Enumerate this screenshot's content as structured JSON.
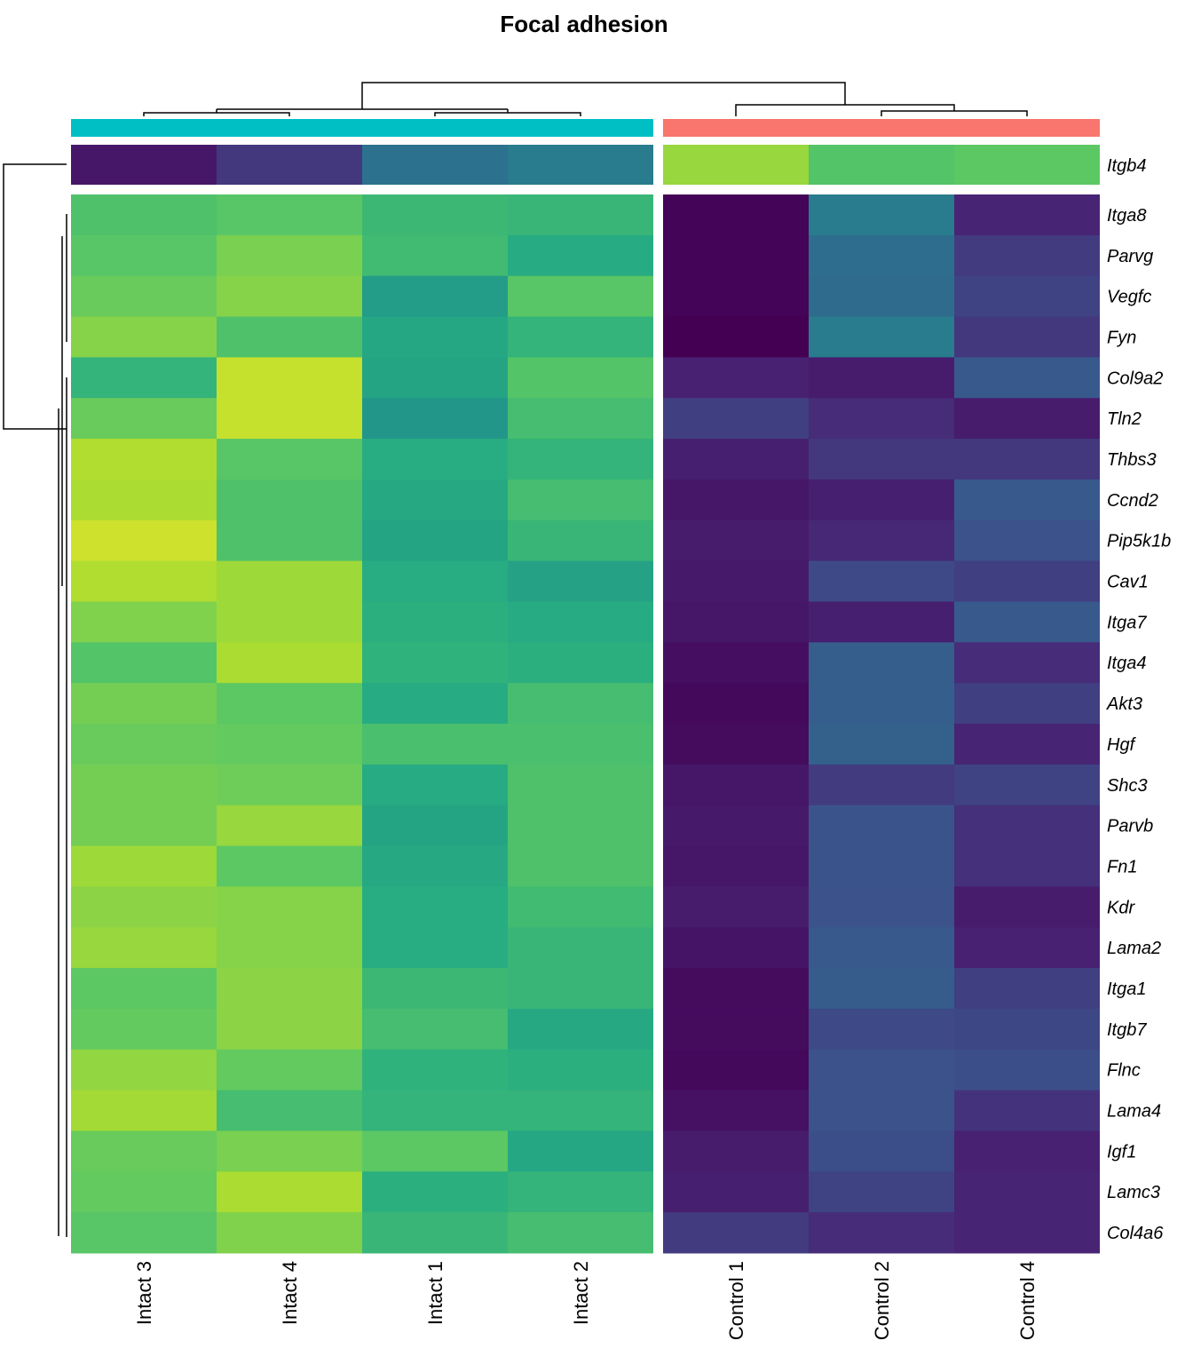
{
  "chart_data": {
    "type": "heatmap",
    "title": "Focal adhesion",
    "columns": [
      "Intact 3",
      "Intact 4",
      "Intact 1",
      "Intact 2",
      "Control 1",
      "Control 2",
      "Control 4"
    ],
    "column_groups": [
      {
        "columns": [
          "Intact 3",
          "Intact 4",
          "Intact 1",
          "Intact 2"
        ],
        "color": "#00BFC4"
      },
      {
        "columns": [
          "Control 1",
          "Control 2",
          "Control 4"
        ],
        "color": "#F8766D"
      }
    ],
    "top_row": {
      "name": "Itgb4",
      "values": [
        0.08,
        0.18,
        0.38,
        0.42,
        0.85,
        0.73,
        0.75
      ]
    },
    "rows": [
      "Itga8",
      "Parvg",
      "Vegfc",
      "Fyn",
      "Col9a2",
      "Tln2",
      "Thbs3",
      "Ccnd2",
      "Pip5k1b",
      "Cav1",
      "Itga7",
      "Itga4",
      "Akt3",
      "Hgf",
      "Shc3",
      "Parvb",
      "Fn1",
      "Kdr",
      "Lama2",
      "Itga1",
      "Itgb7",
      "Flnc",
      "Lama4",
      "Igf1",
      "Lamc3",
      "Col4a6"
    ],
    "values": [
      [
        0.72,
        0.74,
        0.68,
        0.67,
        0.01,
        0.42,
        0.13
      ],
      [
        0.74,
        0.8,
        0.69,
        0.62,
        0.01,
        0.36,
        0.19
      ],
      [
        0.77,
        0.82,
        0.55,
        0.74,
        0.01,
        0.35,
        0.21
      ],
      [
        0.82,
        0.72,
        0.6,
        0.66,
        0.0,
        0.42,
        0.18
      ],
      [
        0.66,
        0.92,
        0.59,
        0.73,
        0.12,
        0.1,
        0.28
      ],
      [
        0.77,
        0.92,
        0.53,
        0.7,
        0.2,
        0.15,
        0.1
      ],
      [
        0.89,
        0.74,
        0.63,
        0.66,
        0.11,
        0.18,
        0.18
      ],
      [
        0.88,
        0.72,
        0.61,
        0.7,
        0.08,
        0.11,
        0.28
      ],
      [
        0.93,
        0.72,
        0.59,
        0.67,
        0.1,
        0.14,
        0.25
      ],
      [
        0.89,
        0.86,
        0.63,
        0.58,
        0.09,
        0.23,
        0.2
      ],
      [
        0.81,
        0.86,
        0.64,
        0.62,
        0.08,
        0.11,
        0.28
      ],
      [
        0.73,
        0.88,
        0.65,
        0.64,
        0.05,
        0.3,
        0.15
      ],
      [
        0.79,
        0.75,
        0.62,
        0.7,
        0.03,
        0.3,
        0.2
      ],
      [
        0.77,
        0.76,
        0.71,
        0.71,
        0.04,
        0.31,
        0.13
      ],
      [
        0.79,
        0.78,
        0.62,
        0.72,
        0.08,
        0.19,
        0.21
      ],
      [
        0.79,
        0.85,
        0.59,
        0.72,
        0.09,
        0.26,
        0.16
      ],
      [
        0.86,
        0.75,
        0.61,
        0.72,
        0.08,
        0.26,
        0.16
      ],
      [
        0.83,
        0.82,
        0.63,
        0.69,
        0.1,
        0.25,
        0.1
      ],
      [
        0.85,
        0.82,
        0.63,
        0.67,
        0.07,
        0.28,
        0.12
      ],
      [
        0.75,
        0.83,
        0.68,
        0.67,
        0.04,
        0.29,
        0.2
      ],
      [
        0.76,
        0.83,
        0.7,
        0.61,
        0.04,
        0.23,
        0.22
      ],
      [
        0.84,
        0.76,
        0.65,
        0.64,
        0.03,
        0.25,
        0.24
      ],
      [
        0.87,
        0.7,
        0.66,
        0.66,
        0.06,
        0.25,
        0.17
      ],
      [
        0.77,
        0.8,
        0.75,
        0.6,
        0.1,
        0.24,
        0.12
      ],
      [
        0.76,
        0.88,
        0.64,
        0.66,
        0.11,
        0.21,
        0.13
      ],
      [
        0.74,
        0.81,
        0.67,
        0.7,
        0.19,
        0.15,
        0.13
      ]
    ],
    "color_scale": "viridis",
    "row_dendrogram": "left",
    "column_dendrogram": "top"
  }
}
